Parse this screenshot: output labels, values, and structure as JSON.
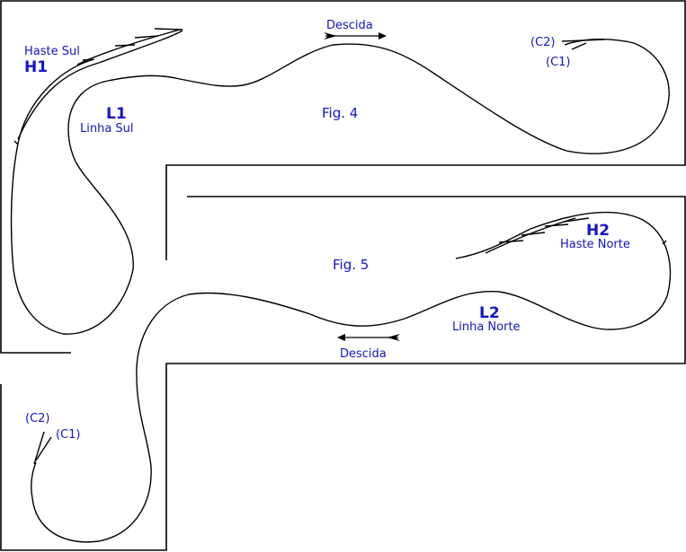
{
  "colors": {
    "track": "#000000",
    "label": "#1414c8",
    "background": "#ffffff"
  },
  "fig4": {
    "caption": "Fig. 4",
    "direction_label": "Descida",
    "spur_name": "Haste Sul",
    "spur_code": "H1",
    "line_code": "L1",
    "line_name": "Linha Sul",
    "track_c2": "(C2)",
    "track_c1": "(C1)"
  },
  "fig5": {
    "caption": "Fig. 5",
    "direction_label": "Descida",
    "spur_name": "Haste Norte",
    "spur_code": "H2",
    "line_code": "L2",
    "line_name": "Linha Norte",
    "track_c2": "(C2)",
    "track_c1": "(C1)"
  }
}
